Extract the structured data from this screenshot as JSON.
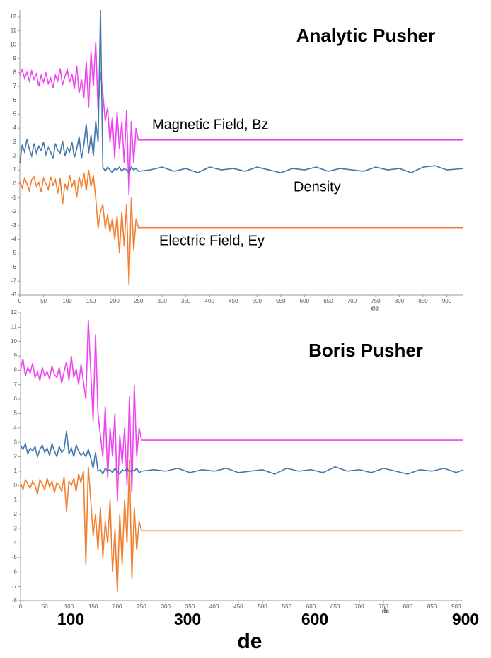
{
  "chart_data": [
    {
      "type": "line",
      "title": "Analytic Pusher",
      "x_label": "de",
      "xlim": [
        0,
        935
      ],
      "ylim": [
        -8,
        12.5
      ],
      "xticks": [
        0,
        50,
        100,
        150,
        200,
        250,
        300,
        350,
        400,
        450,
        500,
        550,
        600,
        650,
        700,
        750,
        800,
        850,
        900
      ],
      "yticks": [
        -8,
        -7,
        -6,
        -5,
        -4,
        -3,
        -2,
        -1,
        0,
        1,
        2,
        3,
        4,
        5,
        6,
        7,
        8,
        9,
        10,
        11,
        12
      ],
      "x": [
        0,
        5,
        10,
        15,
        20,
        25,
        30,
        35,
        40,
        45,
        50,
        55,
        60,
        65,
        70,
        75,
        80,
        85,
        90,
        95,
        100,
        105,
        110,
        115,
        120,
        125,
        130,
        135,
        140,
        145,
        150,
        155,
        160,
        165,
        170,
        175,
        180,
        185,
        190,
        195,
        200,
        205,
        210,
        215,
        220,
        225,
        230,
        235,
        240,
        245,
        250,
        275,
        300,
        325,
        350,
        375,
        400,
        425,
        450,
        475,
        500,
        525,
        550,
        575,
        600,
        625,
        650,
        675,
        700,
        725,
        750,
        775,
        800,
        825,
        850,
        875,
        900,
        935
      ],
      "series": [
        {
          "name": "Magnetic Field, Bz",
          "color": "#ee44ee",
          "values": [
            7.8,
            8.2,
            7.6,
            8.0,
            7.4,
            8.1,
            7.5,
            7.9,
            7.0,
            7.8,
            7.3,
            8.0,
            7.2,
            7.6,
            6.9,
            7.8,
            7.4,
            8.3,
            7.1,
            7.7,
            8.2,
            7.3,
            7.9,
            6.8,
            8.5,
            6.5,
            7.5,
            6.2,
            8.8,
            5.5,
            9.5,
            7.0,
            10.2,
            5.2,
            8.0,
            6.5,
            4.5,
            5.5,
            3.0,
            4.8,
            1.8,
            5.2,
            2.5,
            4.5,
            1.5,
            5.3,
            -0.8,
            4.5,
            1.5,
            4.0,
            3.15,
            3.15,
            3.15,
            3.15,
            3.15,
            3.15,
            3.15,
            3.15,
            3.15,
            3.15,
            3.15,
            3.15,
            3.15,
            3.15,
            3.15,
            3.15,
            3.15,
            3.15,
            3.15,
            3.15,
            3.15,
            3.15,
            3.15,
            3.15,
            3.15,
            3.15,
            3.15,
            3.15
          ]
        },
        {
          "name": "Density",
          "color": "#4477aa",
          "values": [
            1.5,
            2.8,
            2.3,
            3.2,
            2.5,
            2.0,
            2.9,
            2.2,
            2.7,
            2.4,
            3.0,
            2.1,
            2.6,
            2.3,
            1.8,
            2.9,
            2.4,
            2.2,
            3.1,
            2.0,
            2.6,
            2.3,
            3.0,
            1.9,
            2.5,
            3.4,
            1.8,
            2.8,
            4.3,
            2.2,
            3.5,
            2.0,
            4.5,
            3.0,
            12.5,
            1.2,
            0.9,
            1.2,
            1.0,
            0.8,
            1.1,
            1.0,
            1.2,
            0.9,
            1.1,
            1.0,
            0.8,
            1.2,
            1.0,
            1.1,
            0.9,
            1.0,
            1.2,
            0.9,
            1.1,
            0.8,
            1.2,
            1.0,
            1.1,
            0.9,
            1.2,
            1.0,
            0.8,
            1.1,
            1.0,
            1.2,
            0.9,
            1.1,
            1.0,
            0.9,
            1.2,
            1.0,
            1.1,
            0.8,
            1.2,
            1.3,
            1.0,
            1.1
          ]
        },
        {
          "name": "Electric Field, Ey",
          "color": "#f08030",
          "values": [
            0.2,
            -0.3,
            0.4,
            0.0,
            -0.5,
            0.3,
            0.5,
            -0.2,
            0.1,
            -0.6,
            0.4,
            0.0,
            -0.4,
            0.5,
            -0.1,
            0.3,
            -0.7,
            0.4,
            -1.5,
            0.0,
            -0.5,
            0.6,
            -0.2,
            0.3,
            -1.0,
            0.5,
            -0.3,
            0.8,
            -0.5,
            1.0,
            -0.2,
            0.6,
            -1.0,
            -3.2,
            -2.0,
            -1.5,
            -3.2,
            -2.2,
            -3.5,
            -2.5,
            -4.0,
            -2.3,
            -5.0,
            -2.0,
            -4.5,
            -1.5,
            -7.3,
            -1.0,
            -4.8,
            -2.5,
            -3.15,
            -3.15,
            -3.15,
            -3.15,
            -3.15,
            -3.15,
            -3.15,
            -3.15,
            -3.15,
            -3.15,
            -3.15,
            -3.15,
            -3.15,
            -3.15,
            -3.15,
            -3.15,
            -3.15,
            -3.15,
            -3.15,
            -3.15,
            -3.15,
            -3.15,
            -3.15,
            -3.15,
            -3.15,
            -3.15,
            -3.15,
            -3.15
          ]
        }
      ]
    },
    {
      "type": "line",
      "title": "Boris Pusher",
      "x_label": "de",
      "xlim": [
        0,
        915
      ],
      "ylim": [
        -8,
        12
      ],
      "xticks": [
        0,
        50,
        100,
        150,
        200,
        250,
        300,
        350,
        400,
        450,
        500,
        550,
        600,
        650,
        700,
        750,
        800,
        850,
        900
      ],
      "yticks": [
        -8,
        -7,
        -6,
        -5,
        -4,
        -3,
        -2,
        -1,
        0,
        1,
        2,
        3,
        4,
        5,
        6,
        7,
        8,
        9,
        10,
        11,
        12
      ],
      "x": [
        0,
        5,
        10,
        15,
        20,
        25,
        30,
        35,
        40,
        45,
        50,
        55,
        60,
        65,
        70,
        75,
        80,
        85,
        90,
        95,
        100,
        105,
        110,
        115,
        120,
        125,
        130,
        135,
        140,
        145,
        150,
        155,
        160,
        165,
        170,
        175,
        180,
        185,
        190,
        195,
        200,
        205,
        210,
        215,
        220,
        225,
        230,
        235,
        240,
        245,
        250,
        275,
        300,
        325,
        350,
        375,
        400,
        425,
        450,
        475,
        500,
        525,
        550,
        575,
        600,
        625,
        650,
        675,
        700,
        725,
        750,
        775,
        800,
        825,
        850,
        875,
        900,
        915
      ],
      "series": [
        {
          "color": "#ee44ee",
          "values": [
            8.0,
            8.8,
            7.6,
            8.2,
            7.8,
            8.5,
            7.5,
            7.9,
            7.3,
            8.2,
            7.6,
            7.9,
            7.4,
            8.3,
            7.7,
            7.5,
            8.2,
            7.1,
            7.9,
            8.6,
            7.3,
            9.0,
            7.5,
            8.1,
            7.0,
            8.4,
            7.2,
            6.0,
            11.5,
            8.0,
            4.5,
            10.5,
            5.0,
            3.5,
            2.0,
            5.5,
            0.5,
            4.0,
            2.0,
            5.0,
            -1.1,
            3.5,
            1.5,
            4.0,
            0.0,
            6.2,
            -0.5,
            7.0,
            2.0,
            4.0,
            3.15,
            3.15,
            3.15,
            3.15,
            3.15,
            3.15,
            3.15,
            3.15,
            3.15,
            3.15,
            3.15,
            3.15,
            3.15,
            3.15,
            3.15,
            3.15,
            3.15,
            3.15,
            3.15,
            3.15,
            3.15,
            3.15,
            3.15,
            3.15,
            3.15,
            3.15,
            3.15,
            3.15
          ]
        },
        {
          "color": "#4477aa",
          "values": [
            2.8,
            2.5,
            2.9,
            2.2,
            2.6,
            2.4,
            2.7,
            2.0,
            2.5,
            2.8,
            2.3,
            2.6,
            2.1,
            2.9,
            2.4,
            2.0,
            2.7,
            2.3,
            2.5,
            3.8,
            2.2,
            2.6,
            2.0,
            2.8,
            2.4,
            2.1,
            2.3,
            2.0,
            2.5,
            1.9,
            1.2,
            2.3,
            1.0,
            1.1,
            0.8,
            1.2,
            1.0,
            1.1,
            0.9,
            1.2,
            1.0,
            0.8,
            1.1,
            1.0,
            1.2,
            0.9,
            1.1,
            1.0,
            1.2,
            0.9,
            1.0,
            1.1,
            1.0,
            1.2,
            0.9,
            1.1,
            1.0,
            1.2,
            0.9,
            1.0,
            1.1,
            0.8,
            1.2,
            1.0,
            1.1,
            0.9,
            1.3,
            1.0,
            1.1,
            0.9,
            1.2,
            1.0,
            0.8,
            1.1,
            1.0,
            1.2,
            0.9,
            1.1
          ]
        },
        {
          "color": "#f08030",
          "values": [
            0.2,
            -0.3,
            0.4,
            0.1,
            -0.2,
            0.3,
            0.0,
            -0.6,
            0.4,
            0.1,
            -0.3,
            0.5,
            -0.1,
            0.3,
            -0.5,
            0.2,
            0.0,
            -0.4,
            0.6,
            -1.8,
            0.3,
            0.0,
            0.5,
            -0.4,
            0.8,
            0.2,
            1.0,
            -5.5,
            1.3,
            -1.0,
            -3.5,
            -2.0,
            -4.5,
            -1.5,
            -5.0,
            -2.5,
            -4.0,
            -1.0,
            -6.0,
            -3.0,
            -7.4,
            -2.0,
            -5.5,
            -1.0,
            -4.0,
            1.8,
            -6.5,
            -1.5,
            -4.5,
            -2.5,
            -3.15,
            -3.15,
            -3.15,
            -3.15,
            -3.15,
            -3.15,
            -3.15,
            -3.15,
            -3.15,
            -3.15,
            -3.15,
            -3.15,
            -3.15,
            -3.15,
            -3.15,
            -3.15,
            -3.15,
            -3.15,
            -3.15,
            -3.15,
            -3.15,
            -3.15,
            -3.15,
            -3.15,
            -3.15,
            -3.15,
            -3.15,
            -3.15
          ]
        }
      ]
    }
  ],
  "footer": {
    "ticks": [
      100,
      300,
      600,
      900
    ],
    "label": "de"
  }
}
